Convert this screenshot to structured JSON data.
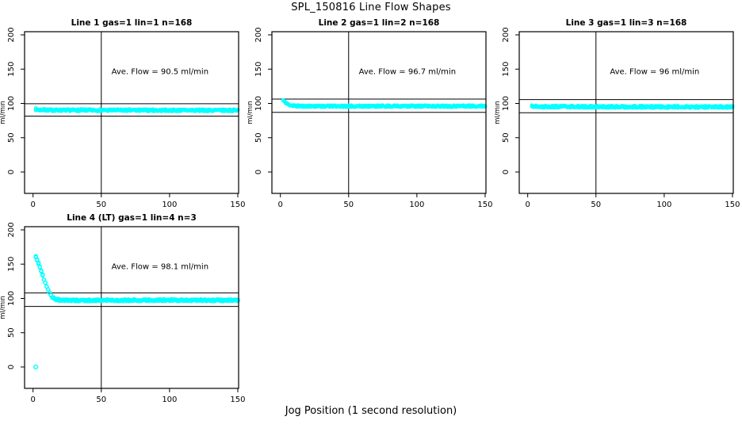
{
  "chart_data": {
    "type": "scatter",
    "title": "SPL_150816  Line Flow Shapes",
    "xlabel": "Jog Position (1 second resolution)",
    "grid": {
      "rows": 2,
      "cols": 3,
      "used_panels": 4
    },
    "colors": {
      "marker": "#00FFFF",
      "axis": "#000000",
      "background": "#FFFFFF"
    },
    "panels": [
      {
        "title": "Line 1 gas=1 lin=1 n=168",
        "annotation": "Ave. Flow =  90.5  ml/min",
        "ave_flow_ml_min": 90.5,
        "gas": 1,
        "lin": 1,
        "n": 168,
        "ylabel": "ml/min",
        "xticks": [
          0,
          50,
          100,
          150
        ],
        "yticks": [
          0,
          50,
          100,
          150,
          200
        ],
        "xlim": [
          -6.2,
          150.6
        ],
        "ylim": [
          -31.2,
          204.6
        ],
        "ref_lines_h": [
          99.6,
          81.5
        ],
        "ref_lines_v": [
          50
        ],
        "profile": [
          [
            2,
            91.5
          ],
          [
            5,
            90.6
          ],
          [
            15,
            90.2
          ],
          [
            150,
            89.9
          ]
        ],
        "x_start": 2,
        "x_end": 150,
        "jitter": 1.6,
        "points_per_x": 3,
        "marker_r": 1.7,
        "outliers": [],
        "seed": 7
      },
      {
        "title": "Line 2 gas=1 lin=2 n=168",
        "annotation": "Ave. Flow =  96.7  ml/min",
        "ave_flow_ml_min": 96.7,
        "gas": 1,
        "lin": 2,
        "n": 168,
        "ylabel": "ml/min",
        "xticks": [
          0,
          50,
          100,
          150
        ],
        "yticks": [
          0,
          50,
          100,
          150,
          200
        ],
        "xlim": [
          -6.2,
          150.6
        ],
        "ylim": [
          -31.2,
          204.6
        ],
        "ref_lines_h": [
          106.4,
          87.0
        ],
        "ref_lines_v": [
          50
        ],
        "profile": [
          [
            2,
            104.5
          ],
          [
            3,
            102.5
          ],
          [
            4,
            101
          ],
          [
            5,
            99.5
          ],
          [
            6,
            98.3
          ],
          [
            8,
            97.2
          ],
          [
            10,
            96.6
          ],
          [
            14,
            96.1
          ],
          [
            25,
            95.9
          ],
          [
            150,
            96.1
          ]
        ],
        "x_start": 2,
        "x_end": 150,
        "jitter": 1.4,
        "points_per_x": 3,
        "marker_r": 1.7,
        "outliers": [],
        "seed": 11
      },
      {
        "title": "Line 3 gas=1 lin=3 n=168",
        "annotation": "Ave. Flow =  96  ml/min",
        "ave_flow_ml_min": 96,
        "gas": 1,
        "lin": 3,
        "n": 168,
        "ylabel": "ml/min",
        "xticks": [
          0,
          50,
          100,
          150
        ],
        "yticks": [
          0,
          50,
          100,
          150,
          200
        ],
        "xlim": [
          -6.2,
          150.6
        ],
        "ylim": [
          -31.2,
          204.6
        ],
        "ref_lines_h": [
          105.6,
          86.4
        ],
        "ref_lines_v": [
          50
        ],
        "profile": [
          [
            3,
            97
          ],
          [
            5,
            96
          ],
          [
            8,
            95.4
          ],
          [
            60,
            95
          ],
          [
            150,
            94.8
          ]
        ],
        "x_start": 3,
        "x_end": 150,
        "jitter": 1.7,
        "points_per_x": 3,
        "marker_r": 1.7,
        "outliers": [],
        "seed": 13
      },
      {
        "title": "Line 4 (LT) gas=1 lin=4 n=3",
        "annotation": "Ave. Flow =  98.1  ml/min",
        "ave_flow_ml_min": 98.1,
        "gas": 1,
        "lin": 4,
        "n": 3,
        "ylabel": "ml/min",
        "xticks": [
          0,
          50,
          100,
          150
        ],
        "yticks": [
          0,
          50,
          100,
          150,
          200
        ],
        "xlim": [
          -6.2,
          150.6
        ],
        "ylim": [
          -31.2,
          204.6
        ],
        "ref_lines_h": [
          107.9,
          88.3
        ],
        "ref_lines_v": [
          50
        ],
        "profile": [
          [
            2,
            161
          ],
          [
            3,
            156.5
          ],
          [
            4,
            151.5
          ],
          [
            5,
            146
          ],
          [
            6,
            140
          ],
          [
            7,
            134
          ],
          [
            8,
            128
          ],
          [
            9,
            122.5
          ],
          [
            10,
            117.5
          ],
          [
            11,
            112.5
          ],
          [
            12,
            108.5
          ],
          [
            13,
            105
          ],
          [
            14,
            102.5
          ],
          [
            15,
            100.5
          ],
          [
            16,
            99.2
          ],
          [
            18,
            98.2
          ],
          [
            20,
            97.6
          ],
          [
            30,
            97.1
          ],
          [
            60,
            97.3
          ],
          [
            100,
            97.5
          ],
          [
            150,
            97.2
          ]
        ],
        "x_start": 2,
        "x_end": 150,
        "jitter": 1.3,
        "points_per_x": 2,
        "marker_r": 2.1,
        "outliers": [
          [
            2,
            0
          ]
        ],
        "seed": 17
      }
    ]
  }
}
